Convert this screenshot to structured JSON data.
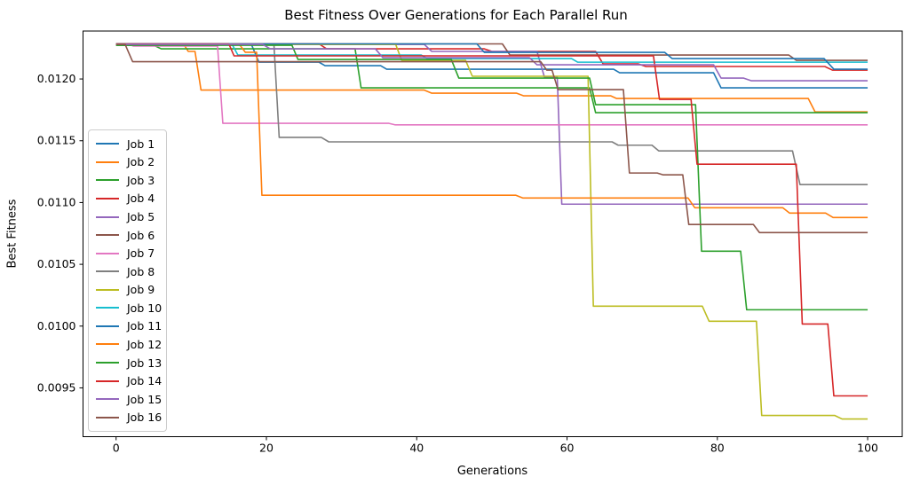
{
  "chart_data": {
    "type": "line",
    "title": "Best Fitness Over Generations for Each Parallel Run",
    "xlabel": "Generations",
    "ylabel": "Best Fitness",
    "xlim": [
      -4.4,
      104.6
    ],
    "ylim": [
      0.009105,
      0.012388
    ],
    "xticks": [
      0,
      20,
      40,
      60,
      80,
      100
    ],
    "xtick_labels": [
      "0",
      "20",
      "40",
      "60",
      "80",
      "100"
    ],
    "yticks": [
      0.0095,
      0.01,
      0.0105,
      0.011,
      0.0115,
      0.012
    ],
    "ytick_labels": [
      "0.0095",
      "0.0100",
      "0.0105",
      "0.0110",
      "0.0115",
      "0.0120"
    ],
    "grid": false,
    "legend_position": "center left",
    "line_width": 1.6,
    "series": [
      {
        "name": "Job 1",
        "color": "#1f77b4",
        "points": [
          [
            0,
            0.01228
          ],
          [
            18,
            0.01228
          ],
          [
            19,
            0.012136
          ],
          [
            27,
            0.012136
          ],
          [
            27.8,
            0.012108
          ],
          [
            35.2,
            0.012108
          ],
          [
            36,
            0.012079
          ],
          [
            66.2,
            0.012079
          ],
          [
            67,
            0.01205
          ],
          [
            79.5,
            0.01205
          ],
          [
            80.5,
            0.011928
          ],
          [
            100,
            0.011928
          ]
        ]
      },
      {
        "name": "Job 2",
        "color": "#ff7f0e",
        "points": [
          [
            0,
            0.01228
          ],
          [
            9,
            0.01228
          ],
          [
            9.6,
            0.012223
          ],
          [
            10.5,
            0.012223
          ],
          [
            11.3,
            0.01191
          ],
          [
            41,
            0.01191
          ],
          [
            42,
            0.011885
          ],
          [
            53.3,
            0.011885
          ],
          [
            54.2,
            0.011864
          ],
          [
            65.8,
            0.011864
          ],
          [
            66.6,
            0.011842
          ],
          [
            92.1,
            0.011842
          ],
          [
            93,
            0.011734
          ],
          [
            100,
            0.011734
          ]
        ]
      },
      {
        "name": "Job 3",
        "color": "#2ca02c",
        "points": [
          [
            0,
            0.012273
          ],
          [
            5,
            0.012273
          ],
          [
            6,
            0.012244
          ],
          [
            31.8,
            0.012244
          ],
          [
            32.6,
            0.011928
          ],
          [
            63,
            0.011928
          ],
          [
            63.8,
            0.011727
          ],
          [
            100,
            0.011727
          ]
        ]
      },
      {
        "name": "Job 4",
        "color": "#d62728",
        "points": [
          [
            0,
            0.012284
          ],
          [
            27,
            0.012284
          ],
          [
            28,
            0.012244
          ],
          [
            49,
            0.012244
          ],
          [
            50,
            0.012223
          ],
          [
            63.8,
            0.012223
          ],
          [
            64.8,
            0.012122
          ],
          [
            69.5,
            0.012122
          ],
          [
            70.5,
            0.012101
          ],
          [
            94.3,
            0.012101
          ],
          [
            95.3,
            0.012072
          ],
          [
            100,
            0.012072
          ]
        ]
      },
      {
        "name": "Job 5",
        "color": "#9467bd",
        "points": [
          [
            0,
            0.01228
          ],
          [
            41,
            0.01228
          ],
          [
            42,
            0.012223
          ],
          [
            56,
            0.012223
          ],
          [
            57,
            0.012014
          ],
          [
            58.7,
            0.012014
          ],
          [
            59.3,
            0.010987
          ],
          [
            100,
            0.010987
          ]
        ]
      },
      {
        "name": "Job 6",
        "color": "#8c564b",
        "points": [
          [
            0,
            0.012284
          ],
          [
            51.4,
            0.012284
          ],
          [
            52.4,
            0.012194
          ],
          [
            89.5,
            0.012194
          ],
          [
            90.5,
            0.012151
          ],
          [
            100,
            0.012151
          ]
        ]
      },
      {
        "name": "Job 7",
        "color": "#e377c2",
        "points": [
          [
            0,
            0.012284
          ],
          [
            1.6,
            0.012284
          ],
          [
            2.3,
            0.012266
          ],
          [
            13.5,
            0.012266
          ],
          [
            14.2,
            0.011641
          ],
          [
            36.3,
            0.011641
          ],
          [
            37.1,
            0.011629
          ],
          [
            100,
            0.011629
          ]
        ]
      },
      {
        "name": "Job 8",
        "color": "#7f7f7f",
        "points": [
          [
            0,
            0.01228
          ],
          [
            21,
            0.01228
          ],
          [
            21.7,
            0.011527
          ],
          [
            27.3,
            0.011527
          ],
          [
            28.3,
            0.011491
          ],
          [
            66,
            0.011491
          ],
          [
            66.8,
            0.011464
          ],
          [
            71.3,
            0.011464
          ],
          [
            72.2,
            0.011418
          ],
          [
            90,
            0.011418
          ],
          [
            91,
            0.011145
          ],
          [
            100,
            0.011145
          ]
        ]
      },
      {
        "name": "Job 9",
        "color": "#bcbd22",
        "points": [
          [
            0,
            0.01228
          ],
          [
            37.2,
            0.01228
          ],
          [
            38,
            0.012151
          ],
          [
            46.5,
            0.012151
          ],
          [
            47.4,
            0.012022
          ],
          [
            62.8,
            0.012022
          ],
          [
            63.5,
            0.010161
          ],
          [
            78,
            0.010161
          ],
          [
            78.9,
            0.010039
          ],
          [
            85.2,
            0.010039
          ],
          [
            85.9,
            0.009277
          ],
          [
            95.6,
            0.009277
          ],
          [
            96.6,
            0.009248
          ],
          [
            100,
            0.009248
          ]
        ]
      },
      {
        "name": "Job 10",
        "color": "#17becf",
        "points": [
          [
            0,
            0.012284
          ],
          [
            15.4,
            0.012284
          ],
          [
            16.2,
            0.012194
          ],
          [
            40.6,
            0.012194
          ],
          [
            41.4,
            0.012165
          ],
          [
            60.6,
            0.012165
          ],
          [
            61.4,
            0.012136
          ],
          [
            100,
            0.012136
          ]
        ]
      },
      {
        "name": "Job 11",
        "color": "#1f77b4",
        "points": [
          [
            0,
            0.012284
          ],
          [
            48,
            0.012284
          ],
          [
            49,
            0.012215
          ],
          [
            73,
            0.012215
          ],
          [
            74,
            0.012165
          ],
          [
            94.2,
            0.012165
          ],
          [
            95.5,
            0.012079
          ],
          [
            100,
            0.012079
          ]
        ]
      },
      {
        "name": "Job 12",
        "color": "#ff7f0e",
        "points": [
          [
            0,
            0.01228
          ],
          [
            16.4,
            0.01228
          ],
          [
            17.2,
            0.012216
          ],
          [
            18.7,
            0.012216
          ],
          [
            19.4,
            0.011059
          ],
          [
            53.2,
            0.011059
          ],
          [
            54.1,
            0.011037
          ],
          [
            76.1,
            0.011037
          ],
          [
            77,
            0.010958
          ],
          [
            88.7,
            0.010958
          ],
          [
            89.6,
            0.010915
          ],
          [
            94.4,
            0.010915
          ],
          [
            95.4,
            0.010879
          ],
          [
            100,
            0.010879
          ]
        ]
      },
      {
        "name": "Job 13",
        "color": "#2ca02c",
        "points": [
          [
            0,
            0.012273
          ],
          [
            23.4,
            0.012273
          ],
          [
            24.2,
            0.012158
          ],
          [
            44.6,
            0.012158
          ],
          [
            45.6,
            0.012007
          ],
          [
            63,
            0.012007
          ],
          [
            63.8,
            0.011792
          ],
          [
            77.1,
            0.011792
          ],
          [
            77.9,
            0.010606
          ],
          [
            83.1,
            0.010606
          ],
          [
            83.9,
            0.010132
          ],
          [
            100,
            0.010132
          ]
        ]
      },
      {
        "name": "Job 14",
        "color": "#d62728",
        "points": [
          [
            0,
            0.012284
          ],
          [
            15,
            0.012284
          ],
          [
            15.7,
            0.012187
          ],
          [
            71.5,
            0.012187
          ],
          [
            72.3,
            0.011835
          ],
          [
            76.5,
            0.011835
          ],
          [
            77.3,
            0.01131
          ],
          [
            90.5,
            0.01131
          ],
          [
            91.3,
            0.010017
          ],
          [
            94.7,
            0.010017
          ],
          [
            95.5,
            0.009435
          ],
          [
            100,
            0.009435
          ]
        ]
      },
      {
        "name": "Job 15",
        "color": "#9467bd",
        "points": [
          [
            0,
            0.01228
          ],
          [
            19.5,
            0.01228
          ],
          [
            20.5,
            0.012244
          ],
          [
            34.5,
            0.012244
          ],
          [
            35.5,
            0.012172
          ],
          [
            55,
            0.012172
          ],
          [
            56,
            0.012115
          ],
          [
            79.5,
            0.012115
          ],
          [
            80.5,
            0.012007
          ],
          [
            83.5,
            0.012007
          ],
          [
            84.5,
            0.011986
          ],
          [
            100,
            0.011986
          ]
        ]
      },
      {
        "name": "Job 16",
        "color": "#8c564b",
        "points": [
          [
            0,
            0.01228
          ],
          [
            1.2,
            0.01228
          ],
          [
            2.2,
            0.01214
          ],
          [
            56.5,
            0.01214
          ],
          [
            57.3,
            0.012072
          ],
          [
            58,
            0.012072
          ],
          [
            58.8,
            0.011914
          ],
          [
            67.5,
            0.011914
          ],
          [
            68.3,
            0.011239
          ],
          [
            72,
            0.011239
          ],
          [
            72.8,
            0.011224
          ],
          [
            75.4,
            0.011224
          ],
          [
            76.2,
            0.010822
          ],
          [
            84.8,
            0.010822
          ],
          [
            85.6,
            0.010757
          ],
          [
            100,
            0.010757
          ]
        ]
      }
    ]
  }
}
